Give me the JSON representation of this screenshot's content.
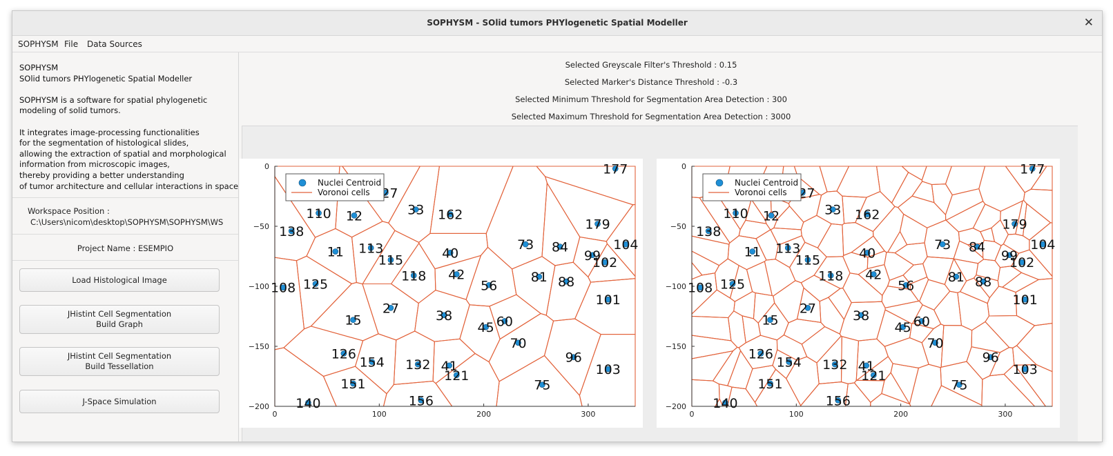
{
  "window": {
    "title": "SOPHYSM - SOlid tumors PHYlogenetic Spatial Modeller"
  },
  "menu": [
    "SOPHYSM",
    "File",
    "Data Sources"
  ],
  "sidebar": {
    "about": [
      "SOPHYSM",
      "SOlid tumors PHYlogenetic Spatial Modeller",
      "",
      "SOPHYSM is a software for spatial phylogenetic",
      "modeling of solid tumors.",
      "",
      "It integrates image-processing functionalities",
      "for the segmentation of histological slides,",
      "allowing the extraction of spatial and morphological",
      "information from microscopic images,",
      "thereby providing a better understanding",
      "of tumor architecture and cellular interactions in space."
    ],
    "workspace_label": "Workspace Position :",
    "workspace_path": "C:\\Users\\nicom\\desktop\\SOPHYSM\\SOPHYSM\\WS",
    "project_name": "Project Name : ESEMPIO",
    "buttons": {
      "load": "Load Histological Image",
      "graph_1": "JHistint Cell Segmentation",
      "graph_2": "Build Graph",
      "tess_1": "JHistint Cell Segmentation",
      "tess_2": "Build Tessellation",
      "jspace": "J-Space Simulation"
    }
  },
  "thresholds": [
    "Selected Greyscale Filter's Threshold : 0.15",
    "Selected Marker's Distance Threshold : -0.3",
    "Selected Minimum Threshold for Segmentation Area Detection : 300",
    "Selected Maximum Threshold for Segmentation Area Detection : 3000"
  ],
  "colors": {
    "centroid": "#1f8fd6",
    "voronoi": "#e2623a"
  },
  "chart_data": [
    {
      "type": "scatter",
      "title": "",
      "legend": {
        "placement": "top-left",
        "entries": [
          "Nuclei Centroid",
          "Voronoi cells"
        ]
      },
      "xlim": [
        0,
        345
      ],
      "ylim": [
        -200,
        0
      ],
      "xticks": [
        0,
        100,
        200,
        300
      ],
      "yticks": [
        0,
        -50,
        -100,
        -150,
        -200
      ],
      "grid": false,
      "series": [
        {
          "name": "Nuclei Centroid",
          "values": "points"
        }
      ]
    },
    {
      "type": "scatter",
      "title": "",
      "legend": {
        "placement": "top-left",
        "entries": [
          "Nuclei Centroid",
          "Voronoi cells"
        ]
      },
      "xlim": [
        0,
        345
      ],
      "ylim": [
        -200,
        0
      ],
      "xticks": [
        0,
        100,
        200,
        300
      ],
      "yticks": [
        0,
        -50,
        -100,
        -150,
        -200
      ],
      "grid": false,
      "series": [
        {
          "name": "Nuclei Centroid",
          "values": "points"
        }
      ]
    }
  ],
  "points": [
    {
      "id": "177",
      "x": 326,
      "y": -2
    },
    {
      "id": "127",
      "x": 106,
      "y": -22
    },
    {
      "id": "110",
      "x": 42,
      "y": -39
    },
    {
      "id": "12",
      "x": 76,
      "y": -41
    },
    {
      "id": "33",
      "x": 135,
      "y": -36
    },
    {
      "id": "162",
      "x": 168,
      "y": -40
    },
    {
      "id": "179",
      "x": 309,
      "y": -48
    },
    {
      "id": "138",
      "x": 16,
      "y": -54
    },
    {
      "id": "113",
      "x": 92,
      "y": -68
    },
    {
      "id": "11",
      "x": 58,
      "y": -71
    },
    {
      "id": "73",
      "x": 240,
      "y": -65
    },
    {
      "id": "84",
      "x": 273,
      "y": -67
    },
    {
      "id": "104",
      "x": 336,
      "y": -65
    },
    {
      "id": "40",
      "x": 168,
      "y": -72
    },
    {
      "id": "115",
      "x": 111,
      "y": -78
    },
    {
      "id": "99",
      "x": 304,
      "y": -74
    },
    {
      "id": "102",
      "x": 316,
      "y": -80
    },
    {
      "id": "42",
      "x": 174,
      "y": -90
    },
    {
      "id": "118",
      "x": 133,
      "y": -91
    },
    {
      "id": "81",
      "x": 253,
      "y": -92
    },
    {
      "id": "88",
      "x": 279,
      "y": -96
    },
    {
      "id": "56",
      "x": 205,
      "y": -99
    },
    {
      "id": "125",
      "x": 39,
      "y": -98
    },
    {
      "id": "108",
      "x": 8,
      "y": -101
    },
    {
      "id": "101",
      "x": 319,
      "y": -111
    },
    {
      "id": "27",
      "x": 111,
      "y": -118
    },
    {
      "id": "38",
      "x": 162,
      "y": -124
    },
    {
      "id": "15",
      "x": 75,
      "y": -128
    },
    {
      "id": "60",
      "x": 220,
      "y": -129
    },
    {
      "id": "45",
      "x": 202,
      "y": -134
    },
    {
      "id": "70",
      "x": 233,
      "y": -147
    },
    {
      "id": "96",
      "x": 286,
      "y": -159
    },
    {
      "id": "126",
      "x": 66,
      "y": -156
    },
    {
      "id": "154",
      "x": 93,
      "y": -163
    },
    {
      "id": "132",
      "x": 137,
      "y": -165
    },
    {
      "id": "41",
      "x": 167,
      "y": -166
    },
    {
      "id": "103",
      "x": 319,
      "y": -169
    },
    {
      "id": "121",
      "x": 174,
      "y": -174
    },
    {
      "id": "151",
      "x": 75,
      "y": -181
    },
    {
      "id": "75",
      "x": 256,
      "y": -182
    },
    {
      "id": "156",
      "x": 140,
      "y": -195
    },
    {
      "id": "140",
      "x": 32,
      "y": -197
    }
  ]
}
